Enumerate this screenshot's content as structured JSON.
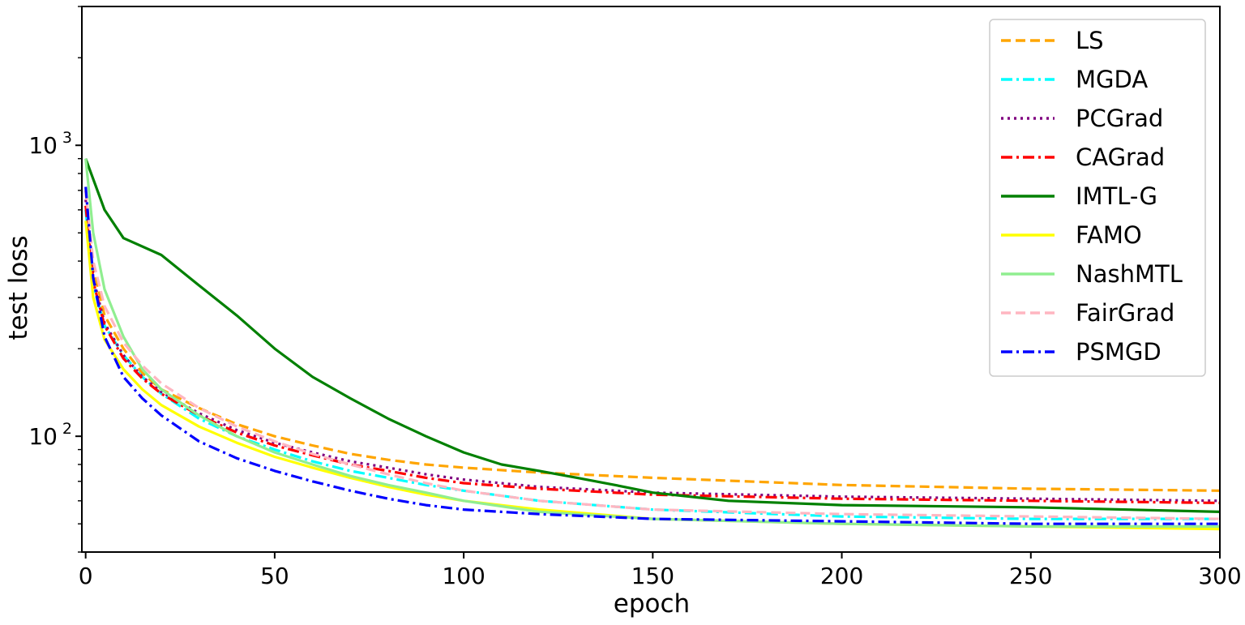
{
  "chart_data": {
    "type": "line",
    "title": "",
    "xlabel": "epoch",
    "ylabel": "test loss",
    "xlim": [
      -1,
      300
    ],
    "ylim": [
      40,
      3000
    ],
    "yscale": "log",
    "x_ticks": [
      "0",
      "50",
      "100",
      "150",
      "200",
      "250",
      "300"
    ],
    "y_ticks": [
      {
        "base": "10",
        "exp": "2"
      },
      {
        "base": "10",
        "exp": "3"
      }
    ],
    "legend_position": "top-right",
    "grid": false,
    "series": [
      {
        "name": "LS",
        "color": "#ffa500",
        "dash": "dashed",
        "anchors": [
          [
            0,
            700
          ],
          [
            2,
            380
          ],
          [
            5,
            260
          ],
          [
            10,
            200
          ],
          [
            15,
            165
          ],
          [
            20,
            145
          ],
          [
            30,
            125
          ],
          [
            40,
            110
          ],
          [
            50,
            100
          ],
          [
            60,
            93
          ],
          [
            70,
            87
          ],
          [
            80,
            83
          ],
          [
            90,
            80
          ],
          [
            100,
            78
          ],
          [
            120,
            75
          ],
          [
            150,
            72
          ],
          [
            200,
            68
          ],
          [
            250,
            66
          ],
          [
            300,
            65
          ]
        ]
      },
      {
        "name": "MGDA",
        "color": "#00ffff",
        "dash": "dashdot",
        "anchors": [
          [
            0,
            600
          ],
          [
            2,
            330
          ],
          [
            5,
            240
          ],
          [
            10,
            190
          ],
          [
            15,
            160
          ],
          [
            20,
            140
          ],
          [
            30,
            115
          ],
          [
            40,
            100
          ],
          [
            50,
            90
          ],
          [
            60,
            82
          ],
          [
            70,
            76
          ],
          [
            80,
            72
          ],
          [
            90,
            68
          ],
          [
            100,
            65
          ],
          [
            120,
            60
          ],
          [
            150,
            56
          ],
          [
            200,
            53
          ],
          [
            250,
            52
          ],
          [
            300,
            52
          ]
        ]
      },
      {
        "name": "PCGrad",
        "color": "#800080",
        "dash": "dotted",
        "anchors": [
          [
            0,
            650
          ],
          [
            2,
            350
          ],
          [
            5,
            245
          ],
          [
            10,
            190
          ],
          [
            15,
            160
          ],
          [
            20,
            142
          ],
          [
            30,
            120
          ],
          [
            40,
            105
          ],
          [
            50,
            95
          ],
          [
            60,
            88
          ],
          [
            70,
            82
          ],
          [
            80,
            78
          ],
          [
            90,
            74
          ],
          [
            100,
            71
          ],
          [
            120,
            67
          ],
          [
            150,
            64
          ],
          [
            200,
            62
          ],
          [
            250,
            61
          ],
          [
            300,
            60
          ]
        ]
      },
      {
        "name": "CAGrad",
        "color": "#ff0000",
        "dash": "dashdot",
        "anchors": [
          [
            0,
            620
          ],
          [
            2,
            340
          ],
          [
            5,
            240
          ],
          [
            10,
            185
          ],
          [
            15,
            158
          ],
          [
            20,
            140
          ],
          [
            30,
            118
          ],
          [
            40,
            103
          ],
          [
            50,
            93
          ],
          [
            60,
            86
          ],
          [
            70,
            80
          ],
          [
            80,
            76
          ],
          [
            90,
            72
          ],
          [
            100,
            69
          ],
          [
            120,
            66
          ],
          [
            150,
            63
          ],
          [
            200,
            61
          ],
          [
            250,
            60
          ],
          [
            300,
            59
          ]
        ]
      },
      {
        "name": "IMTL-G",
        "color": "#008000",
        "dash": "solid",
        "anchors": [
          [
            0,
            900
          ],
          [
            5,
            600
          ],
          [
            10,
            480
          ],
          [
            20,
            420
          ],
          [
            30,
            330
          ],
          [
            40,
            260
          ],
          [
            50,
            200
          ],
          [
            60,
            160
          ],
          [
            70,
            135
          ],
          [
            80,
            115
          ],
          [
            90,
            100
          ],
          [
            100,
            88
          ],
          [
            110,
            80
          ],
          [
            120,
            76
          ],
          [
            130,
            72
          ],
          [
            140,
            68
          ],
          [
            150,
            64
          ],
          [
            170,
            60
          ],
          [
            200,
            58
          ],
          [
            250,
            57
          ],
          [
            300,
            55
          ]
        ]
      },
      {
        "name": "FAMO",
        "color": "#ffff00",
        "dash": "solid",
        "anchors": [
          [
            0,
            550
          ],
          [
            2,
            300
          ],
          [
            5,
            215
          ],
          [
            10,
            170
          ],
          [
            15,
            145
          ],
          [
            20,
            128
          ],
          [
            30,
            108
          ],
          [
            40,
            95
          ],
          [
            50,
            85
          ],
          [
            60,
            78
          ],
          [
            70,
            72
          ],
          [
            80,
            67
          ],
          [
            90,
            63
          ],
          [
            100,
            60
          ],
          [
            120,
            56
          ],
          [
            150,
            52
          ],
          [
            200,
            50
          ],
          [
            250,
            49
          ],
          [
            300,
            48
          ]
        ]
      },
      {
        "name": "NashMTL",
        "color": "#90ee90",
        "dash": "solid",
        "anchors": [
          [
            0,
            900
          ],
          [
            2,
            500
          ],
          [
            5,
            320
          ],
          [
            10,
            220
          ],
          [
            15,
            170
          ],
          [
            20,
            145
          ],
          [
            30,
            118
          ],
          [
            40,
            100
          ],
          [
            50,
            88
          ],
          [
            60,
            80
          ],
          [
            70,
            73
          ],
          [
            80,
            68
          ],
          [
            90,
            64
          ],
          [
            100,
            60
          ],
          [
            120,
            55
          ],
          [
            150,
            52
          ],
          [
            200,
            50
          ],
          [
            250,
            49
          ],
          [
            300,
            49
          ]
        ]
      },
      {
        "name": "FairGrad",
        "color": "#ffb6c1",
        "dash": "dashed",
        "anchors": [
          [
            0,
            700
          ],
          [
            2,
            400
          ],
          [
            5,
            280
          ],
          [
            10,
            210
          ],
          [
            15,
            175
          ],
          [
            20,
            152
          ],
          [
            30,
            125
          ],
          [
            40,
            108
          ],
          [
            50,
            96
          ],
          [
            60,
            87
          ],
          [
            70,
            80
          ],
          [
            80,
            74
          ],
          [
            90,
            69
          ],
          [
            100,
            65
          ],
          [
            120,
            60
          ],
          [
            150,
            56
          ],
          [
            200,
            54
          ],
          [
            250,
            53
          ],
          [
            300,
            52
          ]
        ]
      },
      {
        "name": "PSMGD",
        "color": "#0000ff",
        "dash": "dashdot",
        "anchors": [
          [
            0,
            720
          ],
          [
            2,
            350
          ],
          [
            5,
            220
          ],
          [
            10,
            160
          ],
          [
            15,
            135
          ],
          [
            20,
            118
          ],
          [
            30,
            96
          ],
          [
            40,
            84
          ],
          [
            50,
            76
          ],
          [
            60,
            70
          ],
          [
            70,
            65
          ],
          [
            80,
            61
          ],
          [
            90,
            58
          ],
          [
            100,
            56
          ],
          [
            120,
            54
          ],
          [
            150,
            52
          ],
          [
            200,
            51
          ],
          [
            250,
            50
          ],
          [
            300,
            50
          ]
        ]
      }
    ]
  }
}
